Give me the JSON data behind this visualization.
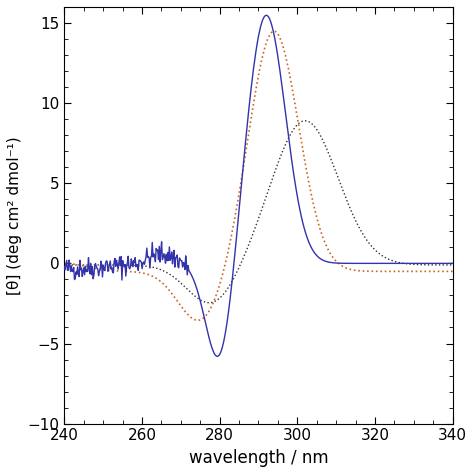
{
  "xlim": [
    240,
    340
  ],
  "ylim": [
    -10,
    16
  ],
  "yticks": [
    -10,
    -5,
    0,
    5,
    10,
    15
  ],
  "xticks": [
    240,
    260,
    280,
    300,
    320,
    340
  ],
  "xlabel": "wavelength / nm",
  "ylabel": "[θ] (deg cm² dmol⁻¹)",
  "blue_color": "#3333aa",
  "orange_color": "#cc6622",
  "black_color": "#333333",
  "figsize": [
    4.74,
    4.74
  ],
  "dpi": 100
}
